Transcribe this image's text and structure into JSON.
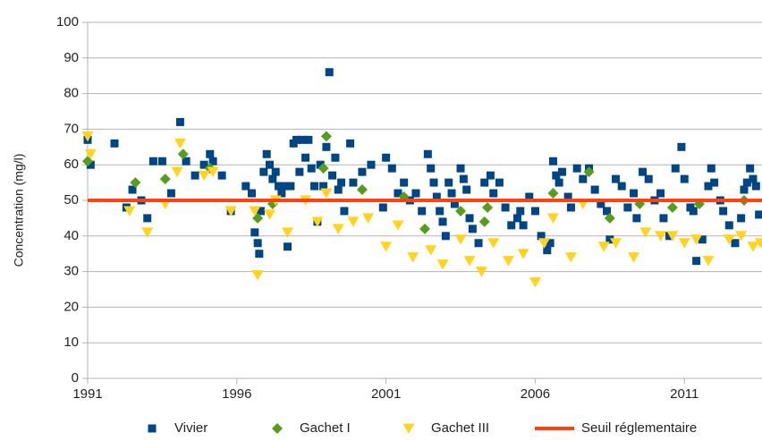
{
  "chart_data": {
    "type": "scatter",
    "y_label": "Concentration (mg/l)",
    "xlim": [
      1991,
      2013.6
    ],
    "xticks": [
      1991,
      1996,
      2001,
      2006,
      2011
    ],
    "ylim": [
      0,
      100
    ],
    "yticks": [
      0,
      10,
      20,
      30,
      40,
      50,
      60,
      70,
      80,
      90,
      100
    ],
    "grid": true,
    "legend": "bottom",
    "series": [
      {
        "name": "Vivier",
        "color": "#004586",
        "marker": "square",
        "x": [
          1991.0,
          1991.1,
          1991.9,
          1992.3,
          1992.5,
          1992.8,
          1993.0,
          1993.2,
          1993.5,
          1993.8,
          1994.1,
          1994.3,
          1994.6,
          1994.9,
          1995.1,
          1995.2,
          1995.5,
          1995.8,
          1996.3,
          1996.5,
          1996.6,
          1996.7,
          1996.75,
          1996.8,
          1996.9,
          1997.0,
          1997.1,
          1997.2,
          1997.3,
          1997.4,
          1997.5,
          1997.6,
          1997.7,
          1997.8,
          1997.9,
          1998.0,
          1998.1,
          1998.2,
          1998.3,
          1998.4,
          1998.5,
          1998.6,
          1998.7,
          1998.8,
          1998.9,
          1999.0,
          1999.1,
          1999.2,
          1999.3,
          1999.4,
          1999.5,
          1999.6,
          1999.8,
          1999.9,
          2000.2,
          2000.5,
          2000.9,
          2001.0,
          2001.2,
          2001.4,
          2001.6,
          2001.8,
          2002.0,
          2002.2,
          2002.4,
          2002.5,
          2002.6,
          2002.7,
          2002.8,
          2002.9,
          2003.0,
          2003.1,
          2003.2,
          2003.3,
          2003.5,
          2003.6,
          2003.7,
          2003.8,
          2003.9,
          2004.1,
          2004.3,
          2004.5,
          2004.6,
          2004.8,
          2005.0,
          2005.2,
          2005.4,
          2005.5,
          2005.6,
          2005.8,
          2006.0,
          2006.2,
          2006.4,
          2006.5,
          2006.6,
          2006.7,
          2006.8,
          2006.9,
          2007.1,
          2007.2,
          2007.4,
          2007.6,
          2007.8,
          2008.0,
          2008.2,
          2008.4,
          2008.5,
          2008.7,
          2008.9,
          2009.1,
          2009.3,
          2009.4,
          2009.6,
          2009.8,
          2010.0,
          2010.2,
          2010.3,
          2010.5,
          2010.7,
          2010.9,
          2011.0,
          2011.2,
          2011.3,
          2011.4,
          2011.6,
          2011.8,
          2011.9,
          2012.0,
          2012.2,
          2012.3,
          2012.5,
          2012.7,
          2012.9,
          2013.0,
          2013.1,
          2013.2,
          2013.3,
          2013.4,
          2013.5
        ],
        "values": [
          67,
          60,
          66,
          48,
          53,
          50,
          45,
          61,
          61,
          52,
          72,
          61,
          57,
          60,
          63,
          61,
          57,
          47,
          54,
          52,
          41,
          38,
          35,
          47,
          58,
          63,
          60,
          56,
          58,
          54,
          52,
          54,
          37,
          54,
          66,
          67,
          58,
          67,
          62,
          67,
          59,
          54,
          44,
          60,
          54,
          65,
          86,
          57,
          62,
          53,
          55,
          47,
          66,
          55,
          58,
          60,
          48,
          62,
          59,
          52,
          55,
          50,
          52,
          47,
          63,
          59,
          55,
          51,
          47,
          44,
          40,
          55,
          52,
          49,
          59,
          56,
          53,
          45,
          42,
          38,
          55,
          57,
          52,
          55,
          48,
          43,
          45,
          47,
          43,
          51,
          47,
          40,
          36,
          38,
          61,
          57,
          55,
          58,
          51,
          48,
          59,
          56,
          59,
          53,
          49,
          47,
          39,
          56,
          54,
          48,
          52,
          45,
          58,
          56,
          50,
          52,
          45,
          40,
          59,
          65,
          56,
          48,
          47,
          33,
          39,
          54,
          59,
          55,
          50,
          47,
          43,
          38,
          45,
          53,
          55,
          59,
          56,
          54,
          46
        ]
      },
      {
        "name": "Gachet I",
        "color": "#579d1c",
        "marker": "diamond",
        "x": [
          1991.0,
          1992.6,
          1993.6,
          1994.2,
          1995.1,
          1996.7,
          1997.2,
          1998.9,
          1999.0,
          2000.2,
          2001.6,
          2002.3,
          2003.5,
          2004.3,
          2004.4,
          2006.6,
          2007.8,
          2008.5,
          2009.5,
          2010.6,
          2011.5,
          2013.0
        ],
        "values": [
          61,
          55,
          56,
          63,
          59,
          45,
          49,
          59,
          68,
          53,
          51,
          42,
          47,
          44,
          48,
          52,
          58,
          45,
          49,
          48,
          49,
          50
        ]
      },
      {
        "name": "Gachet III",
        "color": "#ffd320",
        "marker": "triangle-down",
        "x": [
          1991.0,
          1991.1,
          1992.4,
          1993.0,
          1993.6,
          1994.0,
          1994.1,
          1994.9,
          1995.2,
          1995.8,
          1996.6,
          1996.7,
          1997.1,
          1997.3,
          1997.7,
          1998.3,
          1998.7,
          1999.0,
          1999.4,
          1999.9,
          2000.4,
          2001.0,
          2001.4,
          2001.9,
          2002.5,
          2002.9,
          2003.5,
          2003.8,
          2004.2,
          2004.6,
          2005.1,
          2005.6,
          2006.0,
          2006.3,
          2006.6,
          2007.2,
          2007.6,
          2008.3,
          2008.7,
          2009.3,
          2009.7,
          2010.2,
          2010.6,
          2011.0,
          2011.4,
          2011.8,
          2012.5,
          2012.9,
          2013.3,
          2013.55
        ],
        "values": [
          68,
          63,
          47,
          41,
          49,
          58,
          66,
          57,
          58,
          47,
          47,
          29,
          46,
          50,
          41,
          50,
          44,
          52,
          42,
          44,
          45,
          37,
          43,
          34,
          36,
          32,
          39,
          33,
          30,
          38,
          33,
          35,
          27,
          38,
          45,
          34,
          49,
          37,
          38,
          34,
          41,
          40,
          40,
          38,
          39,
          33,
          39,
          40,
          37,
          38
        ]
      },
      {
        "name": "Seuil réglementaire",
        "color": "#ff420e",
        "marker": "line",
        "x": [
          1991,
          2013.6
        ],
        "values": [
          50,
          50
        ]
      }
    ]
  }
}
